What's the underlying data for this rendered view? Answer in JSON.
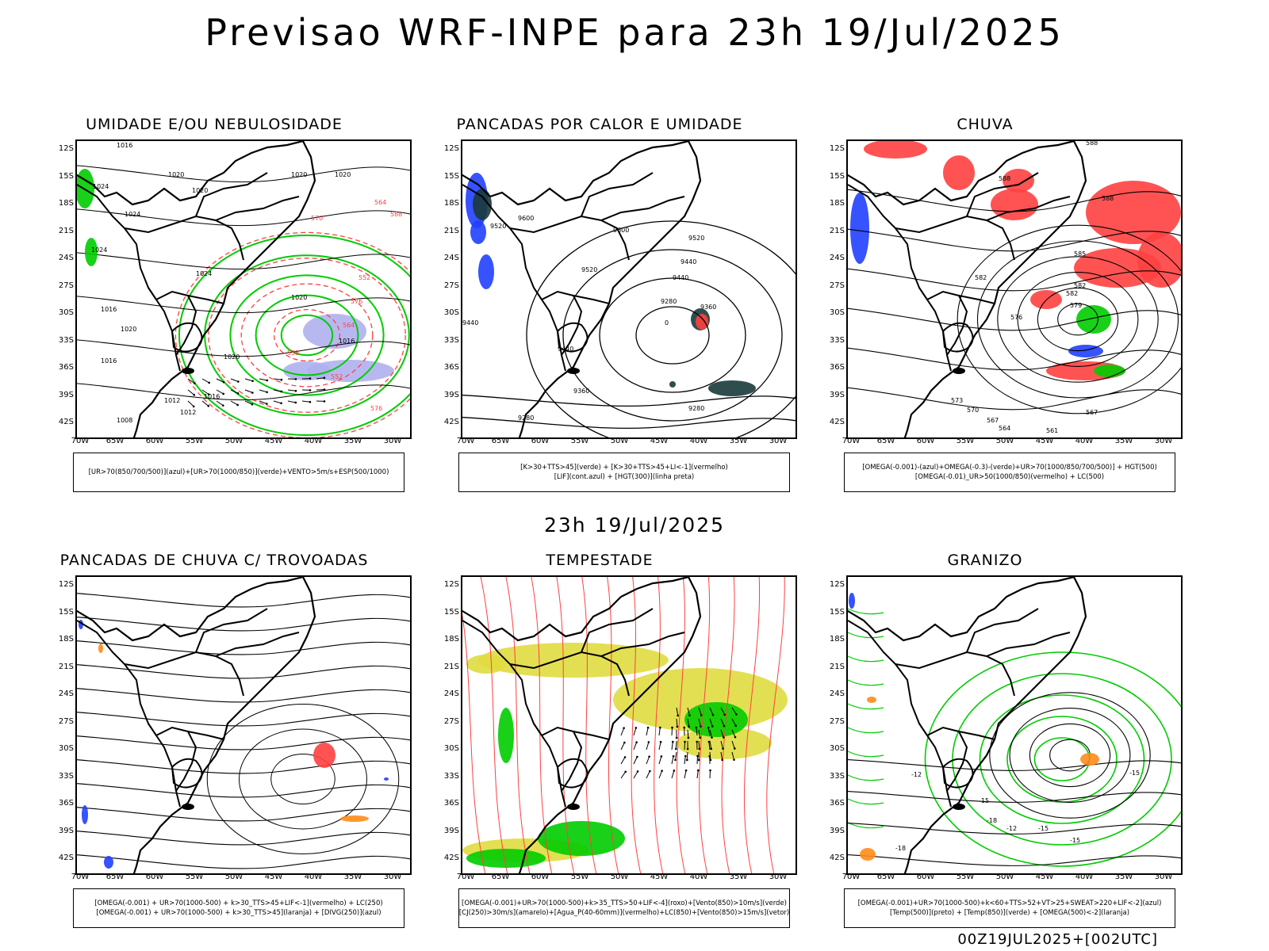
{
  "main_title": "Previsao WRF-INPE  para 23h 19/Jul/2025",
  "mid_title": "23h 19/Jul/2025",
  "footer": "00Z19JUL2025+[002UTC]",
  "lat_labels": [
    "12S",
    "15S",
    "18S",
    "21S",
    "24S",
    "27S",
    "30S",
    "33S",
    "36S",
    "39S",
    "42S"
  ],
  "lon_labels": [
    "70W",
    "65W",
    "60W",
    "55W",
    "50W",
    "45W",
    "40W",
    "35W",
    "30W"
  ],
  "colors": {
    "red": "#ff4040",
    "green": "#00cc00",
    "blue": "#2040ff",
    "lavender": "#b0b0f0",
    "yellow": "#e0dc40",
    "orange": "#ff8c1a",
    "dark": "#1a3a3a"
  },
  "panels": [
    {
      "id": "umidade",
      "title": "UMIDADE E/OU NEBULOSIDADE",
      "legend": [
        "[UR>70(850/700/500)](azul)+[UR>70(1000/850)](verde)+VENTO>5m/s+ESP(500/1000)"
      ],
      "contour_labels": [
        "1016",
        "1020",
        "1020",
        "1020",
        "1020",
        "1024",
        "1024",
        "1024",
        "1020",
        "1016",
        "1020",
        "1016",
        "1012",
        "1008",
        "1016",
        "1020",
        "1024",
        "1016",
        "1012",
        "564",
        "570",
        "576",
        "552",
        "558",
        "564",
        "576",
        "552",
        "588"
      ]
    },
    {
      "id": "pancadas_calor",
      "title": "PANCADAS POR CALOR E UMIDADE",
      "legend": [
        "[K>30+TTS>45](verde) + [K>30+TTS>45+LI<-1](vermelho)",
        "[LIF](cont.azul) + [HGT(300)](linha preta)"
      ],
      "contour_labels": [
        "9600",
        "9520",
        "9600",
        "9520",
        "9440",
        "9520",
        "9440",
        "9280",
        "9360",
        "9440",
        "9360",
        "9280",
        "9280",
        "0",
        "9440"
      ]
    },
    {
      "id": "chuva",
      "title": "CHUVA",
      "legend": [
        "[OMEGA(-0.001)-(azul)+OMEGA(-0.3)-(verde)+UR>70(1000/850/700/500)] + HGT(500)",
        "[OMEGA(-0.01)_UR>50(1000/850)(vermelho) + LC(500)"
      ],
      "contour_labels": [
        "588",
        "588",
        "588",
        "585",
        "582",
        "582",
        "576",
        "579",
        "573",
        "570",
        "567",
        "564",
        "561",
        "567",
        "582"
      ]
    },
    {
      "id": "pancadas_trovoadas",
      "title": "PANCADAS DE CHUVA C/ TROVOADAS",
      "legend": [
        "[OMEGA(-0.001) + UR>70(1000-500) + k>30_TTS>45+LIF<-1](vermelho) + LC(250)",
        "[OMEGA(-0.001) + UR>70(1000-500) + k>30_TTS>45](laranja) + [DIVG(250)](azul)"
      ],
      "contour_labels": []
    },
    {
      "id": "tempestade",
      "title": "TEMPESTADE",
      "legend": [
        "[OMEGA(-0.001)+UR>70(1000-500)+k>35_TTS>50+LIF<-4](roxo)+[Vento(850)>10m/s](verde)",
        "[CJ(250)>30m/s](amarelo)+[Agua_P(40-60mm)](vermelho)+LC(850)+[Vento(850)>15m/s](vetor)"
      ],
      "contour_labels": []
    },
    {
      "id": "granizo",
      "title": "GRANIZO",
      "legend": [
        "[OMEGA(-0.001)+UR>70(1000-500)+k<60+TTS>52+VT>25+SWEAT>220+LIF<-2](azul)",
        "[Temp(500)](preto) + [Temp(850)](verde) + [OMEGA(500)<-2](laranja)"
      ],
      "contour_labels": [
        "-12",
        "-15",
        "-18",
        "-15",
        "-18",
        "-12",
        "-15",
        "-15"
      ]
    }
  ]
}
